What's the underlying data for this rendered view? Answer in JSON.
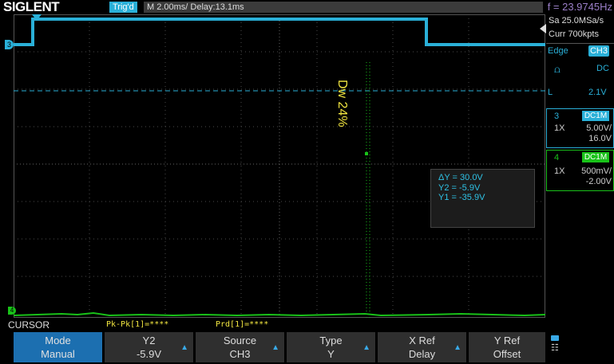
{
  "header": {
    "logo": "SIGLENT",
    "trig_status": "Trig'd",
    "timebase": "M 2.00ms/ Delay:13.1ms",
    "frequency": "f = 23.9745Hz"
  },
  "plot": {
    "dw_label": "Dw 24%",
    "channel_marker": "3",
    "ground_marker": "4"
  },
  "measure_box": {
    "delta_y": "ΔY = 30.0V",
    "y2": "Y2 = -5.9V",
    "y1": "Y1 = -35.9V"
  },
  "side_panel": {
    "sample_rate": "Sa 25.0MSa/s",
    "curr_pts": "Curr 700kpts",
    "trig_type": "Edge",
    "trig_source": "CH3",
    "coupling": "DC",
    "level_label": "L",
    "level": "2.1V",
    "ch3": {
      "num": "3",
      "coupling": "DC1M",
      "probe": "1X",
      "scale": "5.00V/",
      "offset": "16.0V"
    },
    "ch4": {
      "num": "4",
      "coupling": "DC1M",
      "probe": "1X",
      "scale": "500mV/",
      "offset": "-2.00V"
    }
  },
  "status_line": {
    "menu_title": "CURSOR",
    "pkpk": "Pk-Pk[1]=****",
    "prd": "Prd[1]=****"
  },
  "softkeys": [
    {
      "top": "Mode",
      "bottom": "Manual"
    },
    {
      "top": "Y2",
      "bottom": "-5.9V"
    },
    {
      "top": "Source",
      "bottom": "CH3"
    },
    {
      "top": "Type",
      "bottom": "Y"
    },
    {
      "top": "X Ref",
      "bottom": "Delay"
    },
    {
      "top": "Y Ref",
      "bottom": "Offset"
    }
  ],
  "colors": {
    "ch3": "#2ab0d8",
    "ch4": "#19c219",
    "measure": "#f2e640",
    "frequency": "#9b7fc8"
  }
}
